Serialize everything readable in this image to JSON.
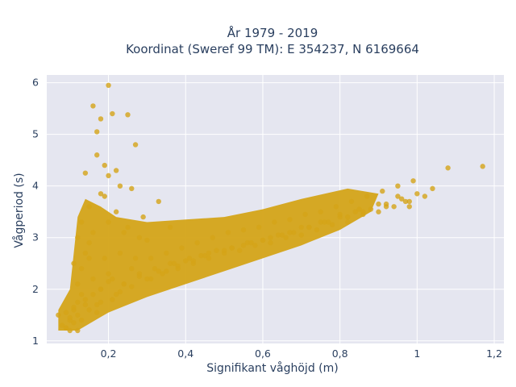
{
  "chart_data": {
    "type": "scatter",
    "title": [
      "År 1979 - 2019",
      "Koordinat (Sweref 99 TM): E 354237, N 6169664"
    ],
    "xlabel": "Signifikant våghöjd (m)",
    "ylabel": "Vågperiod (s)",
    "xlim": [
      0.04,
      1.225
    ],
    "ylim": [
      0.95,
      6.15
    ],
    "x_ticks": [
      0.2,
      0.4,
      0.6,
      0.8,
      1.0,
      1.2
    ],
    "x_tick_labels": [
      "0,2",
      "0,4",
      "0,6",
      "0,8",
      "1",
      "1,2"
    ],
    "y_ticks": [
      1,
      2,
      3,
      4,
      5,
      6
    ],
    "y_tick_labels": [
      "1",
      "2",
      "3",
      "4",
      "5",
      "6"
    ],
    "grid": true,
    "legend": "none",
    "colors": {
      "marker": "#D4A418",
      "plot_bg": "#E5E6F0",
      "grid": "#ffffff",
      "text": "#2a3f5f"
    },
    "series": [
      {
        "x": [
          0.07,
          0.08,
          0.09,
          0.1,
          0.09,
          0.11,
          0.12,
          0.13,
          0.12,
          0.14,
          0.1,
          0.11,
          0.13,
          0.15,
          0.16,
          0.17,
          0.15,
          0.18,
          0.2,
          0.22,
          0.19,
          0.21,
          0.24,
          0.26,
          0.23,
          0.28,
          0.3,
          0.27,
          0.32,
          0.34,
          0.31,
          0.36,
          0.38,
          0.35,
          0.4,
          0.42,
          0.39,
          0.44,
          0.46,
          0.43,
          0.48,
          0.5,
          0.47,
          0.52,
          0.54,
          0.51,
          0.56,
          0.58,
          0.55,
          0.6,
          0.62,
          0.59,
          0.64,
          0.66,
          0.63,
          0.68,
          0.7,
          0.67,
          0.72,
          0.74,
          0.71,
          0.76,
          0.78,
          0.75,
          0.8,
          0.82,
          0.79,
          0.84,
          0.86,
          0.83,
          0.88,
          0.9,
          0.87,
          0.92,
          0.94,
          0.91,
          0.96,
          0.98,
          0.95,
          1.0,
          1.02,
          0.99,
          1.04,
          1.08,
          1.17,
          0.17,
          0.18,
          0.16,
          0.2,
          0.21,
          0.19,
          0.22,
          0.17,
          0.14,
          0.25,
          0.27,
          0.2,
          0.23,
          0.26,
          0.29,
          0.33,
          0.36,
          0.15,
          0.18,
          0.12,
          0.13,
          0.14,
          0.16,
          0.11,
          0.19,
          0.2,
          0.22,
          0.24,
          0.25,
          0.28,
          0.3,
          0.12,
          0.13,
          0.15,
          0.17,
          0.18,
          0.21,
          0.23,
          0.26,
          0.31,
          0.35,
          0.38,
          0.42,
          0.45,
          0.5,
          0.55,
          0.6,
          0.65,
          0.7,
          0.75,
          0.8,
          0.85,
          0.9,
          0.95,
          0.98,
          0.09,
          0.1,
          0.11,
          0.12,
          0.14,
          0.16,
          0.18,
          0.2,
          0.24,
          0.28,
          0.33,
          0.37,
          0.41,
          0.46,
          0.52,
          0.57,
          0.62,
          0.67,
          0.72,
          0.77,
          0.82,
          0.86,
          0.92,
          0.97
        ],
        "y": [
          1.5,
          1.3,
          1.25,
          1.4,
          1.55,
          1.6,
          1.75,
          1.9,
          2.1,
          1.8,
          1.2,
          1.35,
          2.4,
          2.6,
          2.2,
          1.7,
          2.9,
          2.0,
          2.3,
          1.9,
          2.6,
          2.2,
          2.1,
          2.4,
          2.7,
          2.3,
          2.2,
          2.6,
          2.4,
          2.3,
          2.6,
          2.5,
          2.4,
          2.7,
          2.55,
          2.5,
          2.8,
          2.65,
          2.6,
          2.9,
          2.75,
          2.7,
          3.0,
          2.8,
          2.75,
          3.1,
          2.9,
          2.85,
          3.15,
          2.95,
          2.9,
          3.2,
          3.05,
          3.0,
          3.3,
          3.1,
          3.05,
          3.35,
          3.2,
          3.15,
          3.45,
          3.3,
          3.25,
          3.5,
          3.4,
          3.3,
          3.6,
          3.5,
          3.45,
          3.7,
          3.55,
          3.5,
          3.8,
          3.65,
          3.6,
          3.9,
          3.75,
          3.7,
          4.0,
          3.85,
          3.8,
          4.1,
          3.95,
          4.35,
          4.38,
          5.05,
          5.3,
          5.55,
          5.95,
          5.4,
          4.4,
          4.3,
          4.6,
          4.25,
          5.38,
          4.8,
          4.2,
          4.0,
          3.95,
          3.4,
          3.7,
          3.2,
          3.6,
          3.85,
          3.0,
          3.3,
          2.7,
          3.1,
          2.5,
          3.8,
          3.3,
          3.5,
          3.1,
          3.2,
          3.0,
          2.95,
          1.2,
          1.4,
          1.6,
          1.55,
          1.75,
          1.8,
          1.95,
          2.05,
          2.2,
          2.35,
          2.45,
          2.55,
          2.65,
          2.75,
          2.85,
          2.95,
          3.05,
          3.2,
          3.3,
          3.45,
          3.55,
          3.65,
          3.8,
          3.6,
          1.25,
          1.45,
          1.65,
          1.5,
          1.7,
          1.9,
          2.0,
          2.15,
          2.1,
          2.25,
          2.35,
          2.5,
          2.6,
          2.7,
          2.8,
          2.9,
          3.0,
          3.1,
          3.2,
          3.3,
          3.4,
          3.5,
          3.6,
          3.7
        ]
      }
    ]
  }
}
